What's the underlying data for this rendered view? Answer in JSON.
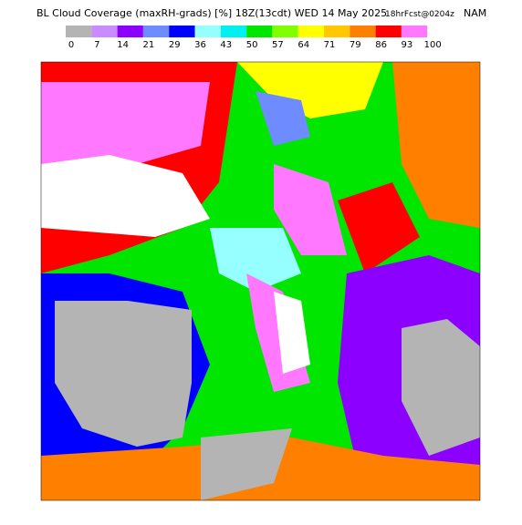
{
  "header": {
    "title": "BL Cloud Coverage (maxRH-grads) [%] 18Z(13cdt) WED 14 May 2025",
    "forecast": "18hrFcst@0204z",
    "model": "NAM"
  },
  "legend": {
    "labels": [
      0,
      7,
      14,
      21,
      29,
      36,
      43,
      50,
      57,
      64,
      71,
      79,
      86,
      93,
      100
    ],
    "colors": [
      "#b4b4b4",
      "#c88cff",
      "#8c00ff",
      "#6e8cff",
      "#0000ff",
      "#96ffff",
      "#00f0f0",
      "#00e600",
      "#80ff00",
      "#ffff00",
      "#ffc800",
      "#ff8000",
      "#ff0000",
      "#ff78ff"
    ]
  }
}
